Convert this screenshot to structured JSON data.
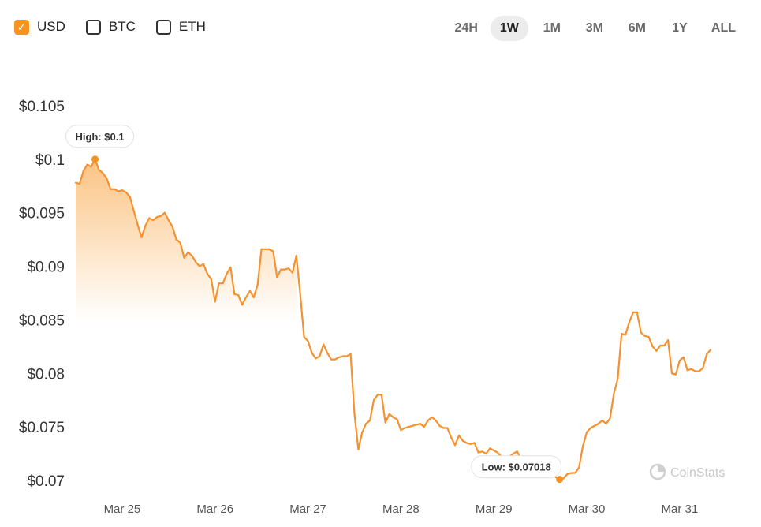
{
  "currency_toggle": [
    {
      "label": "USD",
      "checked": true
    },
    {
      "label": "BTC",
      "checked": false
    },
    {
      "label": "ETH",
      "checked": false
    }
  ],
  "time_ranges": [
    {
      "label": "24H",
      "active": false
    },
    {
      "label": "1W",
      "active": true
    },
    {
      "label": "1M",
      "active": false
    },
    {
      "label": "3M",
      "active": false
    },
    {
      "label": "6M",
      "active": false
    },
    {
      "label": "1Y",
      "active": false
    },
    {
      "label": "ALL",
      "active": false
    }
  ],
  "colors": {
    "accent": "#f7931e",
    "line": "#f5922f"
  },
  "watermark": "CoinStats",
  "chart_data": {
    "type": "area",
    "title": "",
    "xlabel": "",
    "ylabel": "",
    "x_start": "Mar 24 12:00",
    "x_step_hours": 1,
    "xlim_days": [
      0,
      7.35
    ],
    "ylim": [
      0.0686,
      0.1075
    ],
    "yticks": [
      0.07,
      0.075,
      0.08,
      0.085,
      0.09,
      0.095,
      0.1,
      0.105
    ],
    "ytick_labels": [
      "$0.07",
      "$0.075",
      "$0.08",
      "$0.085",
      "$0.09",
      "$0.095",
      "$0.1",
      "$0.105"
    ],
    "xtick_labels": [
      "Mar 25",
      "Mar 26",
      "Mar 27",
      "Mar 28",
      "Mar 29",
      "Mar 30",
      "Mar 31"
    ],
    "xtick_days": [
      0.5,
      1.5,
      2.5,
      3.5,
      4.5,
      5.5,
      6.5
    ],
    "high_label": "High: $0.1",
    "low_label": "Low: $0.07018",
    "grid": false,
    "legend": "none",
    "series": [
      {
        "values": [
          0.0978,
          0.0977,
          0.0989,
          0.0995,
          0.0993,
          0.1,
          0.099,
          0.0987,
          0.0982,
          0.0972,
          0.0972,
          0.097,
          0.0971,
          0.0969,
          0.0965,
          0.0952,
          0.0939,
          0.0927,
          0.0938,
          0.0945,
          0.0943,
          0.0946,
          0.0947,
          0.095,
          0.0943,
          0.0937,
          0.0925,
          0.0922,
          0.0908,
          0.0913,
          0.091,
          0.0904,
          0.09,
          0.0902,
          0.0893,
          0.0888,
          0.0867,
          0.0884,
          0.0884,
          0.0893,
          0.0899,
          0.0874,
          0.0873,
          0.0864,
          0.0871,
          0.0877,
          0.0871,
          0.0883,
          0.0916,
          0.0916,
          0.0916,
          0.0914,
          0.089,
          0.0897,
          0.0897,
          0.0898,
          0.0894,
          0.091,
          0.0874,
          0.0834,
          0.083,
          0.0819,
          0.0814,
          0.0816,
          0.0827,
          0.0819,
          0.0813,
          0.0813,
          0.0815,
          0.0816,
          0.0816,
          0.0818,
          0.0762,
          0.0729,
          0.0745,
          0.0753,
          0.0756,
          0.0775,
          0.078,
          0.078,
          0.0754,
          0.0762,
          0.0759,
          0.0757,
          0.0747,
          0.0749,
          0.075,
          0.0751,
          0.0752,
          0.0753,
          0.075,
          0.0756,
          0.0759,
          0.0756,
          0.0751,
          0.0749,
          0.0749,
          0.074,
          0.0733,
          0.0742,
          0.0737,
          0.0735,
          0.0734,
          0.0735,
          0.0726,
          0.0727,
          0.0725,
          0.073,
          0.0728,
          0.0726,
          0.0722,
          0.072,
          0.0722,
          0.0725,
          0.0727,
          0.072,
          0.0719,
          0.0717,
          0.0716,
          0.0713,
          0.0713,
          0.0711,
          0.0709,
          0.0709,
          0.0703,
          0.0701,
          0.0702,
          0.0706,
          0.0707,
          0.0707,
          0.0712,
          0.0732,
          0.0745,
          0.0749,
          0.0751,
          0.0753,
          0.0756,
          0.0753,
          0.0758,
          0.0781,
          0.0795,
          0.0837,
          0.0836,
          0.0848,
          0.0857,
          0.0857,
          0.0838,
          0.0835,
          0.0834,
          0.0825,
          0.0821,
          0.0826,
          0.0826,
          0.0831,
          0.08,
          0.0799,
          0.0812,
          0.0815,
          0.0803,
          0.0804,
          0.0802,
          0.0802,
          0.0805,
          0.0818,
          0.0822
        ]
      }
    ]
  }
}
